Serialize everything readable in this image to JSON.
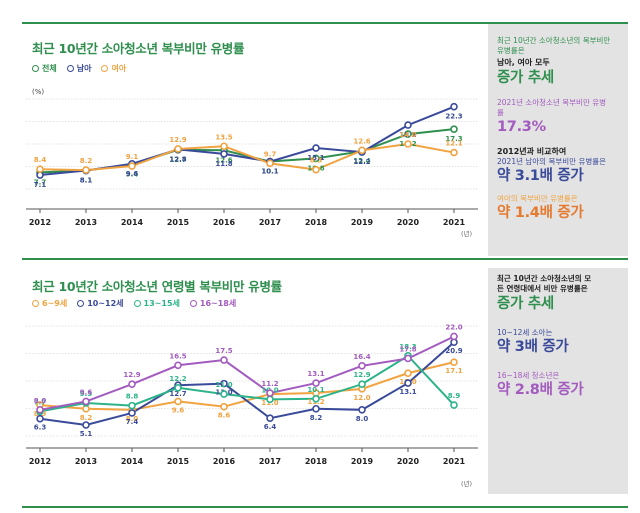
{
  "colors": {
    "green": "#2f8f4e",
    "navy": "#3a4a9a",
    "orange": "#f0a340",
    "purple": "#a35bbf",
    "teal": "#2db38a",
    "dark": "#222222"
  },
  "top": {
    "title": "최근 10년간 소아청소년 복부비만 유병률",
    "legend": [
      {
        "name": "전체",
        "color": "#2f8f4e"
      },
      {
        "name": "남아",
        "color": "#3a4a9a"
      },
      {
        "name": "여아",
        "color": "#f0a340"
      }
    ],
    "unit": "(%)",
    "x_unit": "(년)",
    "side": {
      "intro": "최근 10년간 소아청소년의 복부비만 유병률은",
      "sub": "남아, 여아 모두",
      "headline": "증가 추세",
      "stat1_label": "2021년 소아청소년 복부비만 유병률",
      "stat1_value": "17.3%",
      "stat2_label_a": "2012년과 비교하여",
      "stat2_label_b": "2021년 남아의 복부비만 유병률은",
      "stat2_value": "약 3.1배 증가",
      "stat3_label": "여아의 복부비만 유병률은",
      "stat3_value": "약 1.4배 증가"
    }
  },
  "bottom": {
    "title": "최근 10년간 소아청소년 연령별 복부비만 유병률",
    "legend": [
      {
        "name": "6~9세",
        "color": "#f0a340"
      },
      {
        "name": "10~12세",
        "color": "#3a4a9a"
      },
      {
        "name": "13~15세",
        "color": "#2db38a"
      },
      {
        "name": "16~18세",
        "color": "#a35bbf"
      }
    ],
    "x_unit": "(년)",
    "side": {
      "intro": "최근 10년간 소아청소년의 모든 연령대에서 비만 유병률은",
      "headline": "증가 추세",
      "stat1_label": "10~12세 소아는",
      "stat1_value": "약 3배 증가",
      "stat2_label": "16~18세 청소년은",
      "stat2_value": "약 2.8배 증가"
    }
  },
  "chart_data": [
    {
      "type": "line",
      "title": "최근 10년간 소아청소년 복부비만 유병률",
      "x": [
        "2012",
        "2013",
        "2014",
        "2015",
        "2016",
        "2017",
        "2018",
        "2019",
        "2020",
        "2021"
      ],
      "ylim": [
        4,
        24
      ],
      "series": [
        {
          "name": "전체",
          "values": [
            7.7,
            8.1,
            9.4,
            12.7,
            12.6,
            10.1,
            10.8,
            12.4,
            16.2,
            17.3
          ]
        },
        {
          "name": "남아",
          "values": [
            7.1,
            8.1,
            9.6,
            12.8,
            11.8,
            10.1,
            13.1,
            12.2,
            18.2,
            22.3
          ]
        },
        {
          "name": "여아",
          "values": [
            8.4,
            8.2,
            9.1,
            12.9,
            13.5,
            9.7,
            8.3,
            12.6,
            14.0,
            12.1
          ]
        }
      ]
    },
    {
      "type": "line",
      "title": "최근 10년간 소아청소년 연령별 복부비만 유병률",
      "x": [
        "2012",
        "2013",
        "2014",
        "2015",
        "2016",
        "2017",
        "2018",
        "2019",
        "2020",
        "2021"
      ],
      "ylim": [
        3,
        24
      ],
      "series": [
        {
          "name": "6~9세",
          "values": [
            8.9,
            8.2,
            8.0,
            9.6,
            8.6,
            11.0,
            11.2,
            12.0,
            15.0,
            17.1
          ]
        },
        {
          "name": "10~12세",
          "values": [
            6.3,
            5.1,
            7.4,
            12.7,
            13.0,
            6.4,
            8.2,
            8.0,
            13.1,
            20.9
          ]
        },
        {
          "name": "13~15세",
          "values": [
            7.7,
            9.3,
            8.8,
            12.2,
            11.0,
            10.0,
            10.1,
            12.9,
            18.3,
            8.9
          ]
        },
        {
          "name": "16~18세",
          "values": [
            8.0,
            9.6,
            12.9,
            16.5,
            17.5,
            11.2,
            13.1,
            16.4,
            17.8,
            22.0
          ]
        }
      ]
    }
  ]
}
